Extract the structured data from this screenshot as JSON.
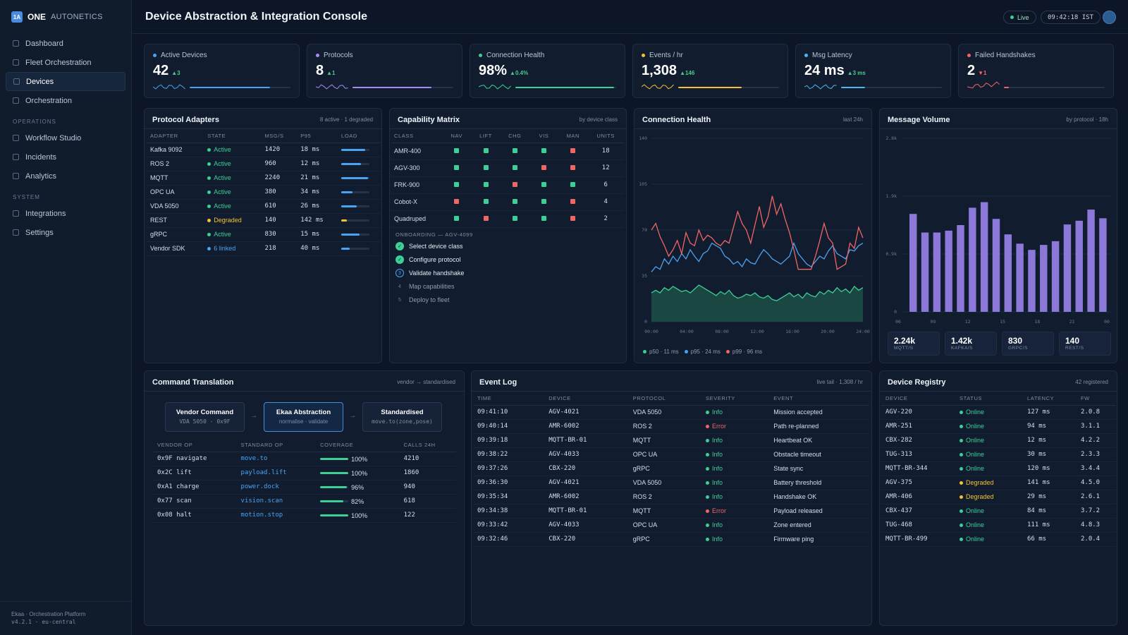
{
  "brand": {
    "logo": "1A",
    "name": "ONE",
    "sub": "AUTONETICS"
  },
  "nav": {
    "main": [
      "Dashboard",
      "Fleet Orchestration",
      "Devices",
      "Orchestration"
    ],
    "operations_label": "OPERATIONS",
    "operations": [
      "Workflow Studio",
      "Incidents",
      "Analytics"
    ],
    "system_label": "SYSTEM",
    "system": [
      "Integrations",
      "Settings"
    ],
    "active": "Devices"
  },
  "footer": {
    "line1": "Ekaa · Orchestration Platform",
    "line2": "v4.2.1 · eu-central"
  },
  "header": {
    "title": "Device Abstraction & Integration Console",
    "live": "Live",
    "clock": "09:42:18 IST"
  },
  "kpis": [
    {
      "label": "Active Devices",
      "value": "42",
      "delta": "▲3",
      "color": "#4aa3f0",
      "fill": 0.8,
      "bad": false
    },
    {
      "label": "Protocols",
      "value": "8",
      "delta": "▲1",
      "color": "#a58cf0",
      "fill": 0.78,
      "bad": false
    },
    {
      "label": "Connection Health",
      "value": "98%",
      "delta": "▲0.4%",
      "color": "#3ccf96",
      "fill": 0.98,
      "bad": false
    },
    {
      "label": "Events / hr",
      "value": "1,308",
      "delta": "▲146",
      "color": "#f2c230",
      "fill": 0.63,
      "bad": false
    },
    {
      "label": "Msg Latency",
      "value": "24 ms",
      "delta": "▲3 ms",
      "color": "#4ab8f0",
      "fill": 0.24,
      "bad": false
    },
    {
      "label": "Failed Handshakes",
      "value": "2",
      "delta": "▼1",
      "color": "#f06565",
      "fill": 0.05,
      "bad": true
    }
  ],
  "adapters": {
    "title": "Protocol Adapters",
    "meta": "8 active · 1 degraded",
    "headers": [
      "ADAPTER",
      "STATE",
      "MSG/S",
      "P95",
      "LOAD"
    ],
    "rows": [
      {
        "name": "Kafka 9092",
        "state": "Active",
        "msgs": "1420",
        "p95": "18 ms",
        "load": 0.85,
        "color": "#3ccf96"
      },
      {
        "name": "ROS 2",
        "state": "Active",
        "msgs": "960",
        "p95": "12 ms",
        "load": 0.7,
        "color": "#3ccf96"
      },
      {
        "name": "MQTT",
        "state": "Active",
        "msgs": "2240",
        "p95": "21 ms",
        "load": 0.95,
        "color": "#3ccf96"
      },
      {
        "name": "OPC UA",
        "state": "Active",
        "msgs": "380",
        "p95": "34 ms",
        "load": 0.4,
        "color": "#3ccf96"
      },
      {
        "name": "VDA 5050",
        "state": "Active",
        "msgs": "610",
        "p95": "26 ms",
        "load": 0.55,
        "color": "#3ccf96"
      },
      {
        "name": "REST",
        "state": "Degraded",
        "msgs": "140",
        "p95": "142 ms",
        "load": 0.2,
        "color": "#f2c230"
      },
      {
        "name": "gRPC",
        "state": "Active",
        "msgs": "830",
        "p95": "15 ms",
        "load": 0.65,
        "color": "#3ccf96"
      },
      {
        "name": "Vendor SDK",
        "state": "6 linked",
        "msgs": "218",
        "p95": "40 ms",
        "load": 0.3,
        "color": "#4aa3f0"
      }
    ]
  },
  "capability": {
    "title": "Capability Matrix",
    "meta": "by device class",
    "headers": [
      "CLASS",
      "NAV",
      "LIFT",
      "CHG",
      "VIS",
      "MAN",
      "UNITS"
    ],
    "rows": [
      {
        "cls": "AMR-400",
        "caps": [
          1,
          1,
          1,
          1,
          0
        ],
        "units": "18"
      },
      {
        "cls": "AGV-300",
        "caps": [
          1,
          1,
          1,
          0,
          0
        ],
        "units": "12"
      },
      {
        "cls": "FRK-900",
        "caps": [
          1,
          1,
          0,
          1,
          1
        ],
        "units": "6"
      },
      {
        "cls": "Cobot-X",
        "caps": [
          0,
          1,
          1,
          1,
          0
        ],
        "units": "4"
      },
      {
        "cls": "Quadruped",
        "caps": [
          1,
          0,
          1,
          1,
          0
        ],
        "units": "2"
      }
    ],
    "onboarding_title": "ONBOARDING — AGV-4099",
    "steps": [
      {
        "label": "Select device class",
        "status": "done",
        "n": "✓"
      },
      {
        "label": "Configure protocol",
        "status": "done",
        "n": "✓"
      },
      {
        "label": "Validate handshake",
        "status": "current",
        "n": "3"
      },
      {
        "label": "Map capabilities",
        "status": "todo",
        "n": "4"
      },
      {
        "label": "Deploy to fleet",
        "status": "todo",
        "n": "5"
      }
    ]
  },
  "chart_data": [
    {
      "type": "line",
      "title": "Connection Health",
      "meta": "last 24h",
      "x_ticks": [
        "00:00",
        "04:00",
        "08:00",
        "12:00",
        "16:00",
        "20:00",
        "24:00"
      ],
      "y_ticks": [
        "0",
        "35",
        "70",
        "105",
        "140"
      ],
      "ylim": [
        0,
        140
      ],
      "xlim": [
        0,
        24
      ],
      "series": [
        {
          "name": "p50 · 11 ms",
          "color": "#3ccf96",
          "values": [
            22,
            24,
            22,
            26,
            24,
            27,
            25,
            23,
            24,
            22,
            25,
            28,
            26,
            24,
            22,
            20,
            23,
            21,
            24,
            20,
            18,
            19,
            21,
            20,
            22,
            19,
            18,
            20,
            17,
            16,
            18,
            20,
            22,
            19,
            21,
            18,
            22,
            20,
            19,
            23,
            21,
            24,
            22,
            26,
            23,
            25,
            22,
            27,
            24,
            26
          ]
        },
        {
          "name": "p95 · 24 ms",
          "color": "#4aa3f0",
          "values": [
            38,
            42,
            40,
            48,
            44,
            50,
            46,
            52,
            48,
            55,
            50,
            46,
            52,
            54,
            60,
            58,
            56,
            50,
            48,
            44,
            46,
            42,
            48,
            45,
            44,
            50,
            55,
            52,
            48,
            46,
            44,
            47,
            50,
            60,
            52,
            48,
            44,
            42,
            46,
            50,
            48,
            54,
            58,
            52,
            50,
            48,
            55,
            54,
            58,
            60
          ]
        },
        {
          "name": "p99 · 96 ms",
          "color": "#f06565",
          "values": [
            70,
            75,
            65,
            58,
            50,
            55,
            62,
            52,
            68,
            60,
            58,
            70,
            62,
            66,
            64,
            60,
            58,
            62,
            60,
            72,
            84,
            75,
            70,
            60,
            74,
            88,
            72,
            80,
            96,
            82,
            90,
            78,
            68,
            55,
            40,
            40,
            40,
            40,
            50,
            62,
            75,
            64,
            60,
            40,
            42,
            44,
            60,
            56,
            72,
            64
          ]
        }
      ]
    },
    {
      "type": "bar",
      "title": "Message Volume",
      "meta": "by protocol · 18h",
      "y_ticks": [
        "0",
        "0.9k",
        "1.9k",
        "2.8k"
      ],
      "ylim": [
        0,
        2.8
      ],
      "x_ticks": [
        "06",
        "09",
        "12",
        "15",
        "18",
        "21",
        "00"
      ],
      "values": [
        1.58,
        1.28,
        1.28,
        1.31,
        1.4,
        1.68,
        1.77,
        1.5,
        1.25,
        1.1,
        1.0,
        1.08,
        1.14,
        1.41,
        1.47,
        1.65,
        1.51
      ],
      "color": "#8b78d8",
      "totals": [
        {
          "value": "2.24k",
          "label": "MQTT/S"
        },
        {
          "value": "1.42k",
          "label": "KAFKA/S"
        },
        {
          "value": "830",
          "label": "GRPC/S"
        },
        {
          "value": "140",
          "label": "REST/S"
        }
      ]
    }
  ],
  "translation": {
    "title": "Command Translation",
    "meta": "vendor → standardised",
    "flow": [
      {
        "title": "Vendor Command",
        "sub": "VDA 5050 · 0x9F"
      },
      {
        "title": "Ekaa Abstraction",
        "sub": "normalise · validate"
      },
      {
        "title": "Standardised",
        "sub": "move.to(zone,pose)"
      }
    ],
    "headers": [
      "VENDOR OP",
      "STANDARD OP",
      "COVERAGE",
      "CALLS 24H"
    ],
    "rows": [
      {
        "vendor": "0x9F navigate",
        "std": "move.to",
        "cov": "100%",
        "covf": 1.0,
        "calls": "4210"
      },
      {
        "vendor": "0x2C lift",
        "std": "payload.lift",
        "cov": "100%",
        "covf": 1.0,
        "calls": "1860"
      },
      {
        "vendor": "0xA1 charge",
        "std": "power.dock",
        "cov": "96%",
        "covf": 0.96,
        "calls": "940"
      },
      {
        "vendor": "0x77 scan",
        "std": "vision.scan",
        "cov": "82%",
        "covf": 0.82,
        "calls": "618"
      },
      {
        "vendor": "0x08 halt",
        "std": "motion.stop",
        "cov": "100%",
        "covf": 1.0,
        "calls": "122"
      }
    ]
  },
  "events": {
    "title": "Event Log",
    "meta": "live tail · 1,308 / hr",
    "headers": [
      "TIME",
      "DEVICE",
      "PROTOCOL",
      "SEVERITY",
      "EVENT"
    ],
    "rows": [
      {
        "time": "09:41:10",
        "device": "AGV-4021",
        "proto": "VDA 5050",
        "sev": "Info",
        "event": "Mission accepted"
      },
      {
        "time": "09:40:14",
        "device": "AMR-6002",
        "proto": "ROS 2",
        "sev": "Error",
        "event": "Path re-planned"
      },
      {
        "time": "09:39:18",
        "device": "MQTT-BR-01",
        "proto": "MQTT",
        "sev": "Info",
        "event": "Heartbeat OK"
      },
      {
        "time": "09:38:22",
        "device": "AGV-4033",
        "proto": "OPC UA",
        "sev": "Info",
        "event": "Obstacle timeout"
      },
      {
        "time": "09:37:26",
        "device": "CBX-220",
        "proto": "gRPC",
        "sev": "Info",
        "event": "State sync"
      },
      {
        "time": "09:36:30",
        "device": "AGV-4021",
        "proto": "VDA 5050",
        "sev": "Info",
        "event": "Battery threshold"
      },
      {
        "time": "09:35:34",
        "device": "AMR-6002",
        "proto": "ROS 2",
        "sev": "Info",
        "event": "Handshake OK"
      },
      {
        "time": "09:34:38",
        "device": "MQTT-BR-01",
        "proto": "MQTT",
        "sev": "Error",
        "event": "Payload released"
      },
      {
        "time": "09:33:42",
        "device": "AGV-4033",
        "proto": "OPC UA",
        "sev": "Info",
        "event": "Zone entered"
      },
      {
        "time": "09:32:46",
        "device": "CBX-220",
        "proto": "gRPC",
        "sev": "Info",
        "event": "Firmware ping"
      }
    ]
  },
  "registry": {
    "title": "Device Registry",
    "meta": "42 registered",
    "headers": [
      "DEVICE",
      "STATUS",
      "LATENCY",
      "FW"
    ],
    "rows": [
      {
        "device": "AGV-220",
        "status": "Online",
        "lat": "127 ms",
        "fw": "2.0.8"
      },
      {
        "device": "AMR-251",
        "status": "Online",
        "lat": "94 ms",
        "fw": "3.1.1"
      },
      {
        "device": "CBX-282",
        "status": "Online",
        "lat": "12 ms",
        "fw": "4.2.2"
      },
      {
        "device": "TUG-313",
        "status": "Online",
        "lat": "30 ms",
        "fw": "2.3.3"
      },
      {
        "device": "MQTT-BR-344",
        "status": "Online",
        "lat": "120 ms",
        "fw": "3.4.4"
      },
      {
        "device": "AGV-375",
        "status": "Degraded",
        "lat": "141 ms",
        "fw": "4.5.0"
      },
      {
        "device": "AMR-406",
        "status": "Degraded",
        "lat": "29 ms",
        "fw": "2.6.1"
      },
      {
        "device": "CBX-437",
        "status": "Online",
        "lat": "84 ms",
        "fw": "3.7.2"
      },
      {
        "device": "TUG-468",
        "status": "Online",
        "lat": "111 ms",
        "fw": "4.8.3"
      },
      {
        "device": "MQTT-BR-499",
        "status": "Online",
        "lat": "66 ms",
        "fw": "2.0.4"
      }
    ]
  }
}
